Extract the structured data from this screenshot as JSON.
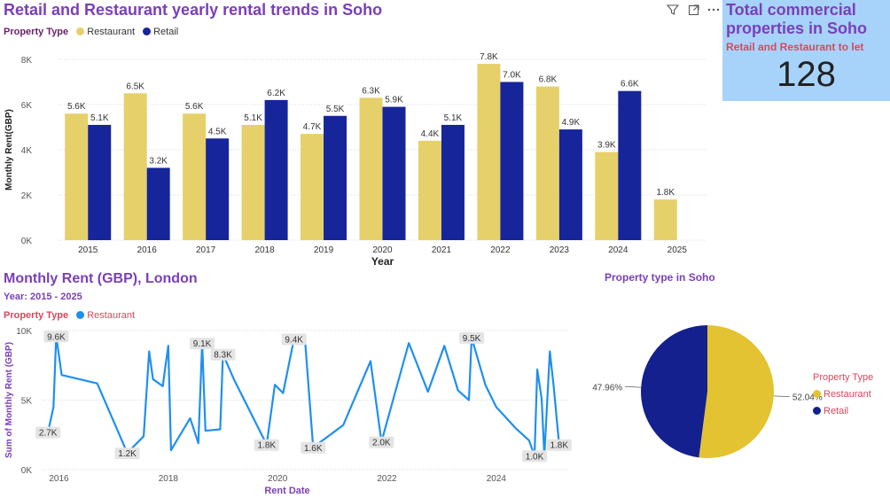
{
  "colors": {
    "restaurant": "#e6d06a",
    "retail": "#16259a",
    "line": "#1f8ff0",
    "pie_restaurant": "#e3c331",
    "pie_retail": "#14208e",
    "title_purple": "#7a3fb8",
    "legend_red": "#d9475d",
    "kpi_bg": "#a7d3fb"
  },
  "top_chart": {
    "title": "Retail and Restaurant yearly rental trends in Soho",
    "legend_title": "Property Type",
    "legend_items": [
      "Restaurant",
      "Retail"
    ],
    "toolbar_icons": [
      "filter-icon",
      "focus-mode-icon",
      "more-options-icon"
    ]
  },
  "kpi": {
    "title": "Total commercial properties in Soho",
    "subtitle": "Retail and Restaurant to let",
    "value": "128"
  },
  "line_panel": {
    "title": "Monthly Rent (GBP), London",
    "subtitle": "Year: 2015 - 2025",
    "legend_title": "Property Type",
    "legend_item": "Restaurant"
  },
  "pie_panel": {
    "title": "Property type in Soho",
    "legend_title": "Property Type",
    "legend_items": [
      "Restaurant",
      "Retail"
    ]
  },
  "chart_data": [
    {
      "type": "bar",
      "xlabel": "Year",
      "ylabel": "Monthly Rent(GBP)",
      "categories": [
        "2015",
        "2016",
        "2017",
        "2018",
        "2019",
        "2020",
        "2021",
        "2022",
        "2023",
        "2024",
        "2025"
      ],
      "series": [
        {
          "name": "Restaurant",
          "values": [
            5600,
            6500,
            5600,
            5100,
            4700,
            6300,
            4400,
            7800,
            6800,
            3900,
            1800
          ],
          "labels": [
            "5.6K",
            "6.5K",
            "5.6K",
            "5.1K",
            "4.7K",
            "6.3K",
            "4.4K",
            "7.8K",
            "6.8K",
            "3.9K",
            "1.8K"
          ]
        },
        {
          "name": "Retail",
          "values": [
            5100,
            3200,
            4500,
            6200,
            5500,
            5900,
            5100,
            7000,
            4900,
            6600,
            null
          ],
          "labels": [
            "5.1K",
            "3.2K",
            "4.5K",
            "6.2K",
            "5.5K",
            "5.9K",
            "5.1K",
            "7.0K",
            "4.9K",
            "6.6K",
            ""
          ]
        }
      ],
      "ylim": [
        0,
        8000
      ],
      "yticks": [
        0,
        2000,
        4000,
        6000,
        8000
      ],
      "ytick_labels": [
        "0K",
        "2K",
        "4K",
        "6K",
        "8K"
      ],
      "grid": true
    },
    {
      "type": "line",
      "xlabel": "Rent Date",
      "ylabel": "Sum of Monthly Rent (GBP)",
      "series": [
        {
          "name": "Restaurant",
          "x": [
            2015.8,
            2015.9,
            2015.95,
            2016.05,
            2016.7,
            2017.25,
            2017.55,
            2017.65,
            2017.72,
            2017.9,
            2017.95,
            2018.0,
            2018.05,
            2018.4,
            2018.55,
            2018.62,
            2018.68,
            2018.95,
            2019.0,
            2019.2,
            2019.8,
            2019.95,
            2020.1,
            2020.3,
            2020.5,
            2020.65,
            2021.2,
            2021.7,
            2021.9,
            2022.4,
            2022.75,
            2023.05,
            2023.3,
            2023.5,
            2023.55,
            2023.6,
            2023.8,
            2024.0,
            2024.35,
            2024.6,
            2024.7,
            2024.75,
            2024.83,
            2024.88,
            2024.98,
            2025.05,
            2025.15
          ],
          "y": [
            2700,
            4500,
            9600,
            6800,
            6200,
            1200,
            2400,
            8500,
            6500,
            6000,
            7500,
            8900,
            1400,
            3700,
            1900,
            9100,
            2800,
            2900,
            8300,
            6500,
            1800,
            6100,
            5500,
            9400,
            9400,
            1600,
            3200,
            7800,
            2000,
            9100,
            5600,
            8900,
            5700,
            5000,
            9500,
            8800,
            6100,
            4500,
            3000,
            2100,
            1000,
            7200,
            5100,
            1000,
            8500,
            6000,
            1800
          ],
          "point_labels": [
            {
              "x": 2015.8,
              "y": 2700,
              "label": "2.7K"
            },
            {
              "x": 2015.95,
              "y": 9600,
              "label": "9.6K"
            },
            {
              "x": 2017.25,
              "y": 1200,
              "label": "1.2K"
            },
            {
              "x": 2018.62,
              "y": 9100,
              "label": "9.1K"
            },
            {
              "x": 2019.0,
              "y": 8300,
              "label": "8.3K"
            },
            {
              "x": 2019.8,
              "y": 1800,
              "label": "1.8K"
            },
            {
              "x": 2020.3,
              "y": 9400,
              "label": "9.4K"
            },
            {
              "x": 2020.65,
              "y": 1600,
              "label": "1.6K"
            },
            {
              "x": 2021.9,
              "y": 2000,
              "label": "2.0K"
            },
            {
              "x": 2023.55,
              "y": 9500,
              "label": "9.5K"
            },
            {
              "x": 2024.7,
              "y": 1000,
              "label": "1.0K"
            },
            {
              "x": 2025.15,
              "y": 1800,
              "label": "1.8K"
            }
          ]
        }
      ],
      "xticks": [
        2016,
        2018,
        2020,
        2022,
        2024
      ],
      "xtick_labels": [
        "2016",
        "2018",
        "2020",
        "2022",
        "2024"
      ],
      "yticks": [
        0,
        5000,
        10000
      ],
      "ytick_labels": [
        "0K",
        "5K",
        "10K"
      ],
      "xlim": [
        2015.7,
        2025.3
      ],
      "ylim": [
        0,
        10000
      ]
    },
    {
      "type": "pie",
      "categories": [
        "Restaurant",
        "Retail"
      ],
      "values": [
        52.04,
        47.96
      ],
      "labels": [
        "52.04%",
        "47.96%"
      ]
    }
  ]
}
